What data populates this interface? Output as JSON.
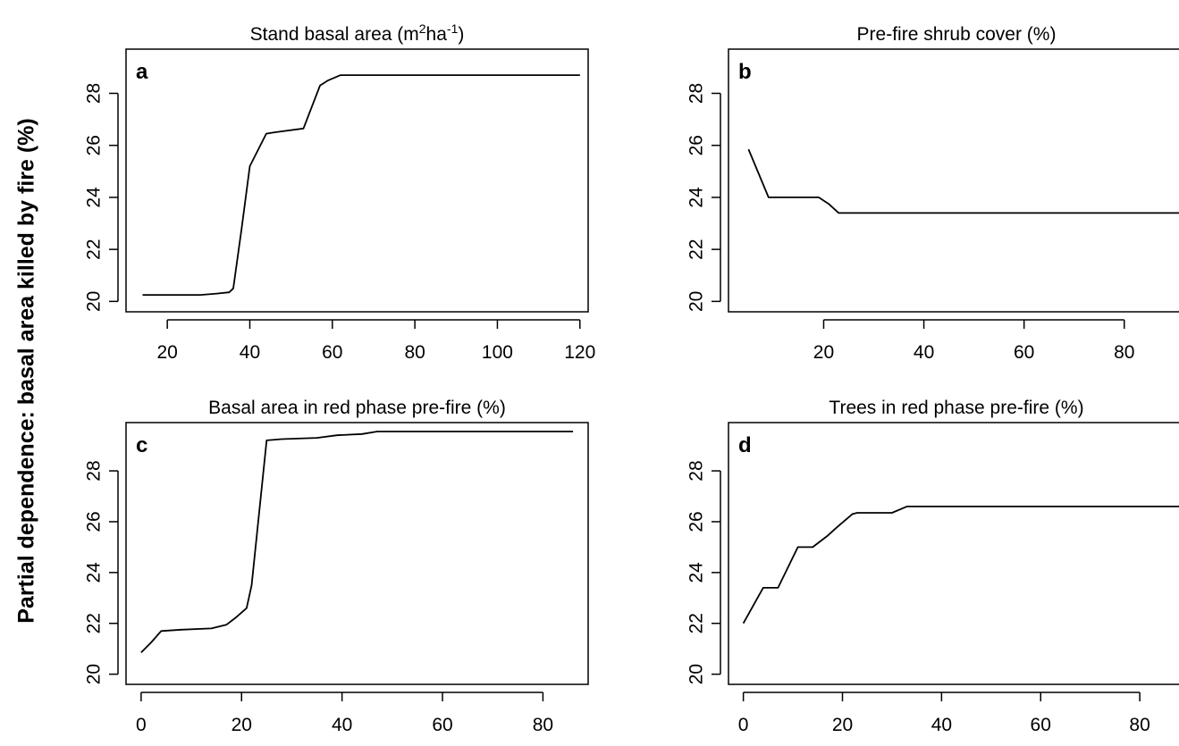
{
  "figure": {
    "ylabel": "Partial dependence: basal area killed by fire (%)"
  },
  "chart_data": [
    {
      "type": "line",
      "panel_label": "a",
      "title": "Stand basal area (m²ha⁻¹)",
      "title_parts": {
        "pre": "Stand basal area (m",
        "sup1": "2",
        "mid": "ha",
        "sup2": "-1",
        "post": ")"
      },
      "xlim": [
        10,
        122
      ],
      "ylim": [
        19.6,
        29.7
      ],
      "xticks": [
        20,
        40,
        60,
        80,
        100,
        120
      ],
      "yticks": [
        20,
        22,
        24,
        26,
        28
      ],
      "x": [
        14,
        28,
        32,
        35,
        36,
        38,
        40,
        44,
        46,
        53,
        57,
        59,
        62,
        120
      ],
      "y": [
        20.25,
        20.25,
        20.3,
        20.35,
        20.5,
        22.8,
        25.2,
        26.45,
        26.5,
        26.65,
        28.3,
        28.5,
        28.7,
        28.7
      ]
    },
    {
      "type": "line",
      "panel_label": "b",
      "title": "Pre-fire shrub cover (%)",
      "xlim": [
        1,
        92
      ],
      "ylim": [
        19.6,
        29.7
      ],
      "xticks": [
        20,
        40,
        60,
        80
      ],
      "yticks": [
        20,
        22,
        24,
        26,
        28
      ],
      "x": [
        5,
        9,
        19,
        21,
        23,
        92
      ],
      "y": [
        25.85,
        24.0,
        24.0,
        23.75,
        23.4,
        23.4
      ]
    },
    {
      "type": "line",
      "panel_label": "c",
      "title": "Basal area in red phase pre-fire (%)",
      "xlim": [
        -3,
        89
      ],
      "ylim": [
        19.6,
        29.9
      ],
      "xticks": [
        0,
        20,
        40,
        60,
        80
      ],
      "yticks": [
        20,
        22,
        24,
        26,
        28
      ],
      "x": [
        0,
        2,
        4,
        8,
        14,
        17,
        19,
        21,
        22,
        25,
        28,
        35,
        39,
        44,
        47,
        86
      ],
      "y": [
        20.85,
        21.25,
        21.7,
        21.75,
        21.8,
        21.95,
        22.25,
        22.6,
        23.5,
        29.2,
        29.25,
        29.3,
        29.4,
        29.45,
        29.55,
        29.55
      ]
    },
    {
      "type": "line",
      "panel_label": "d",
      "title": "Trees in red phase pre-fire (%)",
      "xlim": [
        -3,
        89
      ],
      "ylim": [
        19.6,
        29.9
      ],
      "xticks": [
        0,
        20,
        40,
        60,
        80
      ],
      "yticks": [
        20,
        22,
        24,
        26,
        28
      ],
      "x": [
        0,
        4,
        7,
        11,
        14,
        17,
        19,
        22,
        23,
        30,
        33,
        35,
        92
      ],
      "y": [
        22.0,
        23.4,
        23.4,
        25.0,
        25.0,
        25.45,
        25.8,
        26.3,
        26.35,
        26.35,
        26.6,
        26.6,
        26.6
      ]
    }
  ]
}
